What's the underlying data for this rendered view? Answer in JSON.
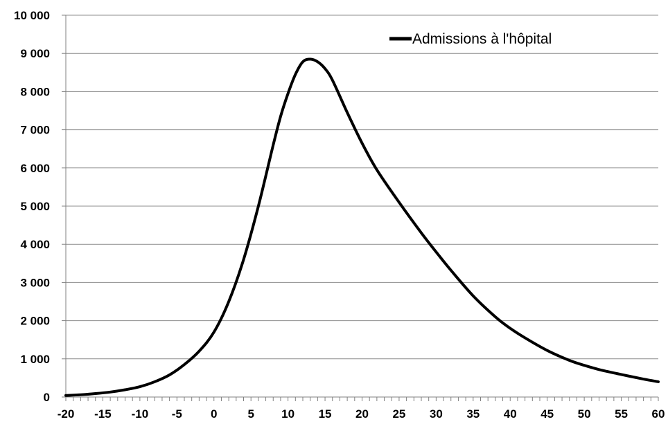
{
  "chart_data": {
    "type": "line",
    "title": "",
    "xlabel": "",
    "ylabel": "",
    "xlim": [
      -20,
      60
    ],
    "ylim": [
      0,
      10000
    ],
    "x_ticks": [
      -20,
      -15,
      -10,
      -5,
      0,
      5,
      10,
      15,
      20,
      25,
      30,
      35,
      40,
      45,
      50,
      55,
      60
    ],
    "x_tick_labels": [
      "-20",
      "-15",
      "-10",
      "-5",
      "0",
      "5",
      "10",
      "15",
      "20",
      "25",
      "30",
      "35",
      "40",
      "45",
      "50",
      "55",
      "60"
    ],
    "y_ticks": [
      0,
      1000,
      2000,
      3000,
      4000,
      5000,
      6000,
      7000,
      8000,
      9000,
      10000
    ],
    "y_tick_labels": [
      "0",
      "1 000",
      "2 000",
      "3 000",
      "4 000",
      "5 000",
      "6 000",
      "7 000",
      "8 000",
      "9 000",
      "10 000"
    ],
    "grid": "horizontal",
    "legend_position": "top-right",
    "series": [
      {
        "name": "Admissions à l'hôpital",
        "color": "#000000",
        "x": [
          -20,
          -18,
          -16,
          -14,
          -12,
          -10,
          -8,
          -6,
          -4,
          -2,
          0,
          2,
          4,
          6,
          8,
          9,
          10,
          11,
          12,
          13,
          14,
          15,
          16,
          18,
          20,
          22,
          25,
          28,
          30,
          32,
          35,
          38,
          40,
          42,
          45,
          48,
          50,
          52,
          55,
          58,
          60
        ],
        "y": [
          40,
          60,
          90,
          130,
          190,
          270,
          400,
          580,
          850,
          1200,
          1700,
          2500,
          3600,
          5000,
          6600,
          7350,
          7950,
          8450,
          8780,
          8850,
          8780,
          8600,
          8300,
          7450,
          6650,
          5950,
          5100,
          4300,
          3800,
          3320,
          2650,
          2100,
          1800,
          1550,
          1220,
          960,
          830,
          720,
          590,
          470,
          400
        ]
      }
    ]
  }
}
